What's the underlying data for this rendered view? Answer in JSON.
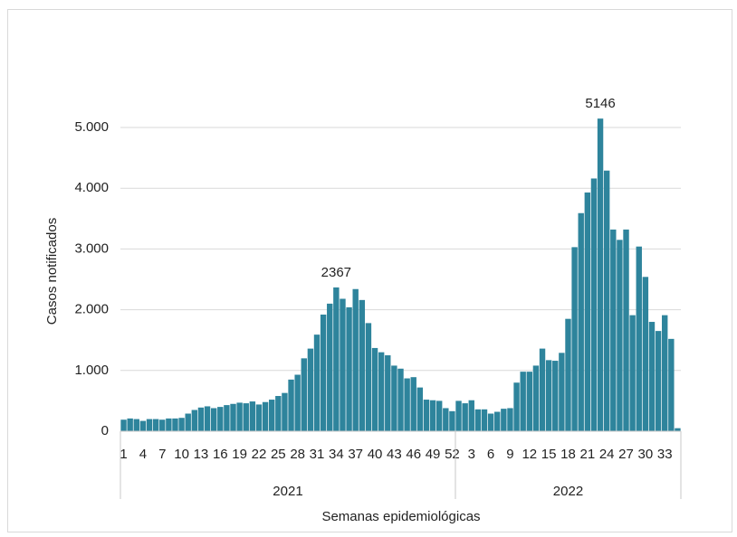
{
  "chart_data": {
    "type": "bar",
    "color": "#2e849c",
    "y_axis_label": "Casos notificados",
    "x_axis_label": "Semanas epidemiológicas",
    "ylim": [
      0,
      6000
    ],
    "yticks": [
      0,
      {
        "value": 1000,
        "label": "1.000"
      },
      {
        "value": 2000,
        "label": "2.000"
      },
      {
        "value": 3000,
        "label": "3.000"
      },
      {
        "value": 4000,
        "label": "4.000"
      },
      {
        "value": 5000,
        "label": "5.000"
      }
    ],
    "grid": true,
    "groups": [
      {
        "name": "2021",
        "categories": [
          1,
          null,
          null,
          4,
          null,
          null,
          7,
          null,
          null,
          10,
          null,
          null,
          13,
          null,
          null,
          16,
          null,
          null,
          19,
          null,
          null,
          22,
          null,
          null,
          25,
          null,
          null,
          28,
          null,
          null,
          31,
          null,
          null,
          34,
          null,
          null,
          37,
          null,
          null,
          40,
          null,
          null,
          43,
          null,
          null,
          46,
          null,
          null,
          49,
          null,
          null,
          52
        ],
        "values": [
          190,
          210,
          200,
          170,
          200,
          200,
          190,
          210,
          210,
          220,
          290,
          350,
          390,
          410,
          380,
          400,
          430,
          450,
          470,
          460,
          490,
          440,
          480,
          520,
          580,
          630,
          850,
          930,
          1200,
          1360,
          1590,
          1920,
          2100,
          2367,
          2180,
          2040,
          2340,
          2160,
          1780,
          1370,
          1300,
          1250,
          1080,
          1030,
          870,
          890,
          720,
          520,
          510,
          500,
          380,
          330
        ],
        "value_labels": [
          null,
          null,
          null,
          null,
          null,
          null,
          null,
          null,
          null,
          null,
          null,
          null,
          null,
          null,
          null,
          null,
          null,
          null,
          null,
          null,
          null,
          null,
          null,
          null,
          null,
          null,
          null,
          null,
          null,
          null,
          null,
          null,
          null,
          "2367",
          null,
          null,
          null,
          null,
          null,
          null,
          null,
          null,
          null,
          null,
          null,
          null,
          null,
          null,
          null,
          null,
          null,
          null
        ]
      },
      {
        "name": "2022",
        "categories": [
          null,
          null,
          3,
          null,
          null,
          6,
          null,
          null,
          9,
          null,
          null,
          12,
          null,
          null,
          15,
          null,
          null,
          18,
          null,
          null,
          21,
          null,
          null,
          24,
          null,
          null,
          27,
          null,
          null,
          30,
          null,
          null,
          33,
          null,
          null
        ],
        "values": [
          500,
          460,
          510,
          360,
          360,
          290,
          320,
          370,
          380,
          800,
          980,
          980,
          1080,
          1360,
          1170,
          1160,
          1290,
          1850,
          3030,
          3590,
          3930,
          4160,
          5146,
          4290,
          3320,
          3150,
          3320,
          1910,
          3040,
          2540,
          1800,
          1650,
          1910,
          1520,
          50
        ],
        "value_labels": [
          null,
          null,
          null,
          null,
          null,
          null,
          null,
          null,
          null,
          null,
          null,
          null,
          null,
          null,
          null,
          null,
          null,
          null,
          null,
          null,
          null,
          null,
          "5146",
          null,
          null,
          null,
          null,
          null,
          null,
          null,
          null,
          null,
          null,
          null,
          null
        ]
      }
    ]
  }
}
